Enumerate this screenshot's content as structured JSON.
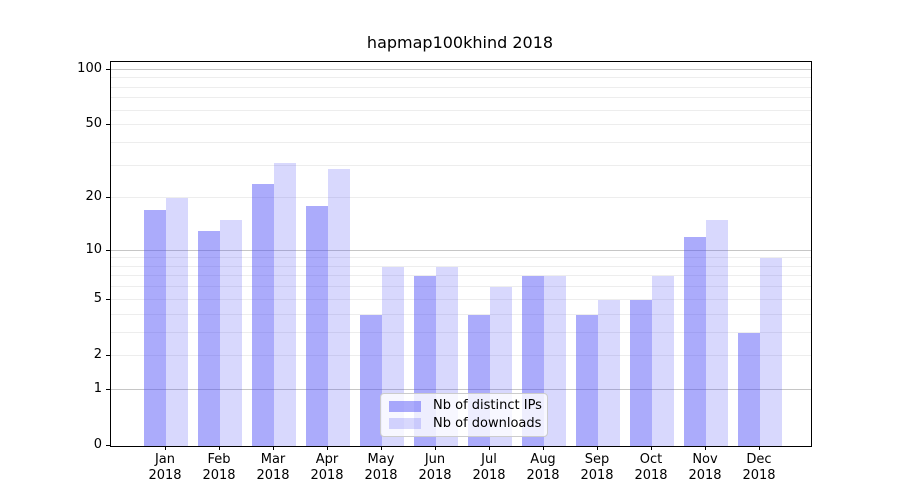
{
  "title": "hapmap100khind 2018",
  "chart_data": {
    "type": "bar",
    "title": "hapmap100khind 2018",
    "categories": [
      "Jan 2018",
      "Feb 2018",
      "Mar 2018",
      "Apr 2018",
      "May 2018",
      "Jun 2018",
      "Jul 2018",
      "Aug 2018",
      "Sep 2018",
      "Oct 2018",
      "Nov 2018",
      "Dec 2018"
    ],
    "series": [
      {
        "name": "Nb of distinct IPs",
        "color": "#4d4df6",
        "alpha": 0.47,
        "values": [
          17,
          13,
          24,
          18,
          4,
          7,
          4,
          7,
          4,
          5,
          12,
          3
        ]
      },
      {
        "name": "Nb of downloads",
        "color": "#4d4df6",
        "alpha": 0.22,
        "values": [
          20,
          15,
          31,
          29,
          8,
          8,
          6,
          7,
          5,
          7,
          15,
          9
        ]
      }
    ],
    "xlabel": "",
    "ylabel": "",
    "yscale": "log1p",
    "yticks": [
      0,
      1,
      2,
      5,
      10,
      20,
      50,
      100
    ],
    "ylim": [
      0,
      110
    ],
    "grid": "horizontal",
    "legend_position": "lower-center",
    "colors": {
      "major_grid": "#c6c6c6",
      "minor_grid": "#ededed",
      "axis": "#000000",
      "legend_border": "#cccccc"
    }
  }
}
